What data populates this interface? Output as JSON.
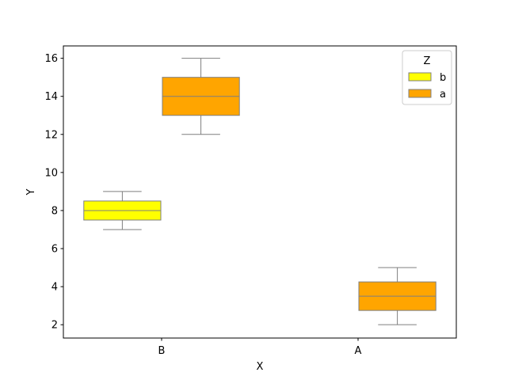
{
  "chart_data": {
    "type": "box",
    "categories": [
      "B",
      "A"
    ],
    "xlabel": "X",
    "ylabel": "Y",
    "ylim": [
      1.3,
      16.65
    ],
    "yticks": [
      2,
      4,
      6,
      8,
      10,
      12,
      14,
      16
    ],
    "legend": {
      "title": "Z",
      "placement": "top-right"
    },
    "series": [
      {
        "name": "b",
        "color": "#ffff00",
        "boxes": [
          {
            "category": "B",
            "whislo": 7,
            "q1": 7.5,
            "med": 8,
            "q3": 8.5,
            "whishi": 9
          }
        ]
      },
      {
        "name": "a",
        "color": "#ffa500",
        "boxes": [
          {
            "category": "B",
            "whislo": 12,
            "q1": 13,
            "med": 14,
            "q3": 15,
            "whishi": 16
          },
          {
            "category": "A",
            "whislo": 2,
            "q1": 2.75,
            "med": 3.5,
            "q3": 4.25,
            "whishi": 5
          }
        ]
      }
    ],
    "grid": false
  }
}
